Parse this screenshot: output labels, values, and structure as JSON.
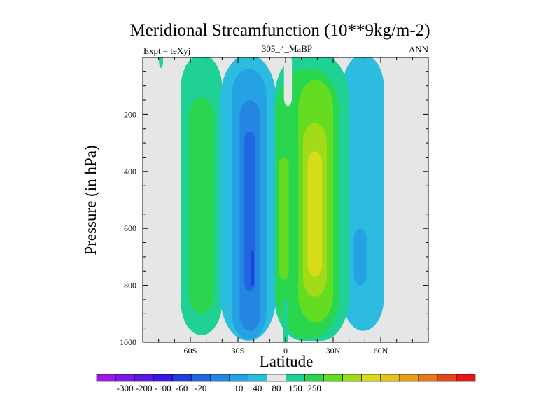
{
  "chart_data": {
    "type": "contour",
    "title": "Meridional Streamfunction (10**9kg/m-2)",
    "left_label": "Expt = teXyj",
    "center_label": "305_4_MaBP",
    "right_label": "ANN",
    "xlabel": "Latitude",
    "ylabel": "Pressure (in hPa)",
    "xlim": [
      -90,
      90
    ],
    "ylim": [
      1000,
      0
    ],
    "x_ticks": [
      {
        "value": -60,
        "label": "60S"
      },
      {
        "value": -30,
        "label": "30S"
      },
      {
        "value": 0,
        "label": "0"
      },
      {
        "value": 30,
        "label": "30N"
      },
      {
        "value": 60,
        "label": "60N"
      }
    ],
    "y_ticks": [
      {
        "value": 200,
        "label": "200"
      },
      {
        "value": 400,
        "label": "400"
      },
      {
        "value": 600,
        "label": "600"
      },
      {
        "value": 800,
        "label": "800"
      },
      {
        "value": 1000,
        "label": "1000"
      }
    ],
    "background_fill": "#e6e6e6",
    "colorbar": {
      "colors": [
        "#9d19e8",
        "#7a18e6",
        "#5a17e4",
        "#3818e0",
        "#1e3ddb",
        "#1f66e0",
        "#2486e2",
        "#25a2e3",
        "#2bbce0",
        "#e6e6e6",
        "#1fd192",
        "#2ad64e",
        "#63dc22",
        "#a2dc18",
        "#d8dc18",
        "#e6c21b",
        "#e69f1b",
        "#e6781b",
        "#e6461b",
        "#e61414"
      ],
      "labels": [
        "-300",
        "-200",
        "-100",
        "-60",
        "-20",
        "10",
        "40",
        "80",
        "150",
        "250"
      ]
    },
    "features": [
      {
        "name": "southern-ferrel-cell",
        "lat_range": [
          -67,
          -40
        ],
        "p_range": [
          0,
          975
        ],
        "peak_level": 40
      },
      {
        "name": "southern-hadley-cell",
        "lat_range": [
          -42,
          -5
        ],
        "p_range": [
          0,
          995
        ],
        "peak_level": -100
      },
      {
        "name": "equatorial-positive-cell",
        "lat_range": [
          -7,
          40
        ],
        "p_range": [
          0,
          995
        ],
        "peak_level": 150
      },
      {
        "name": "northern-ferrel-cell",
        "lat_range": [
          35,
          62
        ],
        "p_range": [
          0,
          960
        ],
        "peak_level": -60
      },
      {
        "name": "polar-blob",
        "lat_range": [
          -80,
          -77
        ],
        "p_range": [
          0,
          25
        ],
        "peak_level": 10
      }
    ]
  }
}
